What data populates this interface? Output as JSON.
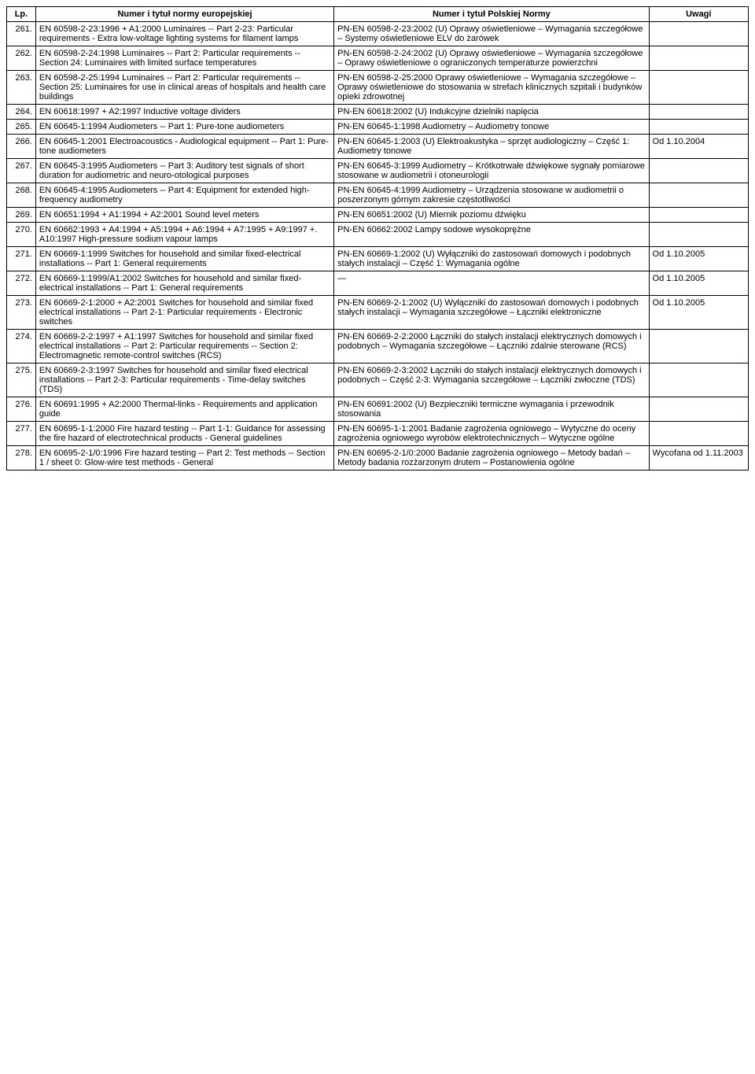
{
  "columns": [
    "Lp.",
    "Numer i tytuł normy europejskiej",
    "Numer i tytuł Polskiej Normy",
    "Uwagi"
  ],
  "rows": [
    {
      "lp": "261.",
      "en": "EN 60598-2-23:1996 + A1:2000\nLuminaires -- Part 2-23: Particular requirements - Extra low-voltage lighting systems for filament lamps",
      "pn": "PN-EN 60598-2-23:2002 (U)\nOprawy oświetleniowe – Wymagania szczegółowe – Systemy oświetleniowe ELV do żarówek",
      "uw": ""
    },
    {
      "lp": "262.",
      "en": "EN 60598-2-24:1998\nLuminaires -- Part 2: Particular requirements -- Section 24: Luminaires with limited surface temperatures",
      "pn": "PN-EN 60598-2-24:2002 (U)\nOprawy oświetleniowe – Wymagania szczegółowe – Oprawy oświetleniowe o ograniczonych temperaturze powierzchni",
      "uw": ""
    },
    {
      "lp": "263.",
      "en": "EN 60598-2-25:1994\nLuminaires -- Part 2: Particular requirements -- Section 25: Luminaires for use in clinical areas of hospitals and health care buildings",
      "pn": "PN-EN 60598-2-25:2000\nOprawy oświetleniowe – Wymagania szczegółowe – Oprawy oświetleniowe do stosowania w strefach klinicznych szpitali i budynków opieki zdrowotnej",
      "uw": ""
    },
    {
      "lp": "264.",
      "en": "EN 60618:1997 + A2:1997\nInductive voltage dividers",
      "pn": "PN-EN 60618:2002 (U)\nIndukcyjne dzielniki napięcia",
      "uw": ""
    },
    {
      "lp": "265.",
      "en": "EN 60645-1:1994\nAudiometers -- Part 1: Pure-tone audiometers",
      "pn": "PN-EN 60645-1:1998\nAudiometry – Audiometry tonowe",
      "uw": ""
    },
    {
      "lp": "266.",
      "en": "EN 60645-1:2001\nElectroacoustics - Audiological equipment -- Part 1: Pure-tone audiometers",
      "pn": "PN-EN 60645-1:2003 (U)\nElektroakustyka – sprzęt audiologiczny – Część 1: Audiometry tonowe",
      "uw": "Od 1.10.2004"
    },
    {
      "lp": "267.",
      "en": "EN 60645-3:1995\nAudiometers -- Part 3: Auditory test signals of short duration for audiometric and neuro-otological purposes",
      "pn": "PN-EN 60645-3:1999\nAudiometry – Krótkotrwałe dźwiękowe sygnały pomiarowe stosowane w audiometrii i otoneurologii",
      "uw": ""
    },
    {
      "lp": "268.",
      "en": "EN 60645-4:1995\nAudiometers -- Part 4: Equipment for extended high-frequency audiometry",
      "pn": "PN-EN 60645-4:1999\nAudiometry – Urządzenia stosowane w audiometrii o poszerzonym górnym zakresie częstotliwości",
      "uw": ""
    },
    {
      "lp": "269.",
      "en": "EN 60651:1994 + A1:1994 + A2:2001\nSound level meters",
      "pn": "PN-EN 60651:2002 (U)\nMiernik poziomu dźwięku",
      "uw": ""
    },
    {
      "lp": "270.",
      "en": "EN 60662:1993 + A4:1994 + A5:1994 + A6:1994 + A7:1995 + A9:1997 +. A10:1997\nHigh-pressure sodium vapour lamps",
      "pn": "PN-EN 60662:2002\nLampy sodowe wysokoprężne",
      "uw": ""
    },
    {
      "lp": "271.",
      "en": "EN 60669-1:1999\nSwitches for household and similar fixed-electrical installations -- Part 1: General requirements",
      "pn": "PN-EN 60669-1:2002 (U)\nWyłączniki do zastosowań domowych i podobnych stałych instalacji – Część 1: Wymagania ogólne",
      "uw": "Od 1.10.2005"
    },
    {
      "lp": "272.",
      "en": "EN 60669-1:1999/A1:2002\nSwitches for household and similar fixed-electrical installations -- Part 1: General requirements",
      "pn": "—",
      "uw": "Od 1.10.2005"
    },
    {
      "lp": "273.",
      "en": "EN 60669-2-1:2000 + A2:2001\nSwitches for household and similar fixed electrical installations -- Part 2-1: Particular requirements - Electronic switches",
      "pn": "PN-EN 60669-2-1:2002 (U)\nWyłączniki do zastosowań domowych i podobnych stałych instalacji – Wymagania szczegółowe – Łączniki elektroniczne",
      "uw": "Od 1.10.2005"
    },
    {
      "lp": "274.",
      "en": "EN 60669-2-2:1997 + A1:1997\nSwitches for household and similar fixed electrical installations -- Part 2: Particular requirements -- Section 2: Electromagnetic remote-control switches (RCS)",
      "pn": "PN-EN 60669-2-2:2000\nŁączniki do stałych instalacji elektrycznych domowych i podobnych – Wymagania szczegółowe – Łączniki zdalnie sterowane (RCS)",
      "uw": ""
    },
    {
      "lp": "275.",
      "en": "EN 60669-2-3:1997\nSwitches for household and similar fixed electrical installations -- Part 2-3: Particular requirements - Time-delay switches (TDS)",
      "pn": "PN-EN 60669-2-3:2002\nŁączniki do stałych instalacji elektrycznych domowych i podobnych – Część 2-3: Wymagania szczegółowe – Łączniki zwłoczne (TDS)",
      "uw": ""
    },
    {
      "lp": "276.",
      "en": "EN 60691:1995 + A2:2000\nThermal-links - Requirements and application guide",
      "pn": "PN-EN 60691:2002 (U)\nBezpieczniki termiczne wymagania i przewodnik stosowania",
      "uw": ""
    },
    {
      "lp": "277.",
      "en": "EN 60695-1-1:2000\nFire hazard testing -- Part 1-1: Guidance for assessing the fire hazard of electrotechnical products - General guidelines",
      "pn": "PN-EN 60695-1-1:2001\nBadanie zagrożenia ogniowego – Wytyczne do oceny zagrożenia ogniowego wyrobów elektrotechnicznych – Wytyczne ogólne",
      "uw": ""
    },
    {
      "lp": "278.",
      "en": "EN 60695-2-1/0:1996\nFire hazard testing -- Part 2: Test methods -- Section 1 / sheet 0: Glow-wire test methods - General",
      "pn": "PN-EN 60695-2-1/0:2000\nBadanie zagrożenia ogniowego – Metody badań – Metody badania rozżarzonym drutem – Postanowienia ogólne",
      "uw": "Wycofana od 1.11.2003"
    }
  ]
}
